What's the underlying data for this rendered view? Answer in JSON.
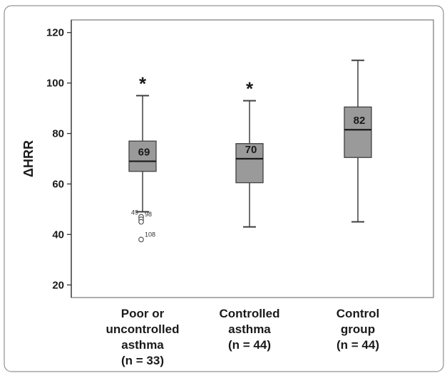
{
  "chart_data": {
    "type": "boxplot",
    "ylabel": "ΔHRR",
    "ylim": [
      15,
      125
    ],
    "yticks": [
      20,
      40,
      60,
      80,
      100,
      120
    ],
    "grid": false,
    "groups": [
      {
        "label_lines": [
          "Poor or",
          "uncontrolled",
          "asthma",
          "(n = 33)"
        ],
        "whisker_low": 49,
        "q1": 65,
        "median": 69,
        "q3": 77,
        "whisker_high": 95,
        "median_label": "69",
        "significance": "*",
        "outliers": [
          {
            "value": 47,
            "label": "49"
          },
          {
            "value": 46,
            "label": "98"
          },
          {
            "value": 45,
            "label": ""
          },
          {
            "value": 38,
            "label": "108"
          }
        ]
      },
      {
        "label_lines": [
          "Controlled",
          "asthma",
          "(n = 44)"
        ],
        "whisker_low": 43,
        "q1": 60.5,
        "median": 70,
        "q3": 76,
        "whisker_high": 93,
        "median_label": "70",
        "significance": "*",
        "outliers": []
      },
      {
        "label_lines": [
          "Control",
          "group",
          "(n = 44)"
        ],
        "whisker_low": 45,
        "q1": 70.5,
        "median": 81.5,
        "q3": 90.5,
        "whisker_high": 109,
        "median_label": "82",
        "significance": "",
        "outliers": []
      }
    ]
  }
}
